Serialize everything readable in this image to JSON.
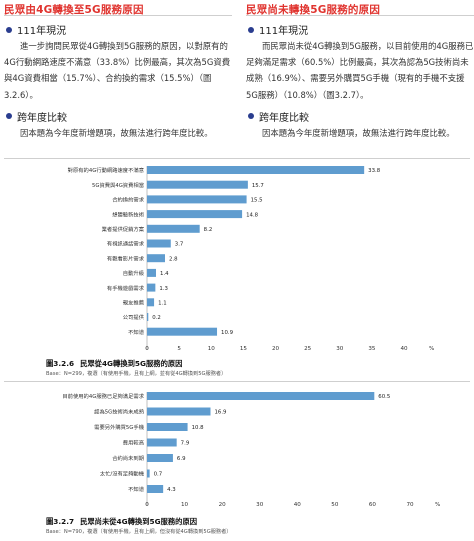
{
  "left": {
    "title": "民眾由4G轉換至5G服務原因",
    "sub1": "111年現況",
    "para1": "進一步詢問民眾從4G轉換到5G服務的原因，以對原有的4G行動網路速度不滿意（33.8%）比例最高，其次為5G資費與4G資費相當（15.7%）、合約換約需求（15.5%）（圖3.2.6）。",
    "sub2": "跨年度比較",
    "para2": "因本題為今年度新增題項，故無法進行跨年度比較。"
  },
  "right": {
    "title": "民眾尚未轉換5G服務的原因",
    "sub1": "111年現況",
    "para1": "而民眾尚未從4G轉換到5G服務，以目前使用的4G服務已足夠滿足需求（60.5%）比例最高，其次為認為5G技術尚未成熟（16.9%）、需要另外購買5G手機（現有的手機不支援5G服務）（10.8%）（圖3.2.7）。",
    "sub2": "跨年度比較",
    "para2": "因本題為今年度新增題項，故無法進行跨年度比較。"
  },
  "colors": {
    "title": "#e0342f",
    "bar": "#5f9ccf",
    "bullet": "#2a3d8f"
  },
  "chart_data": [
    {
      "type": "bar",
      "orientation": "horizontal",
      "title": "民眾從4G轉換到5G服務的原因",
      "caption_number": "圖3.2.6",
      "note": "Base：N=299，複選（有使用手機，且有上網，並有從4G轉換到5G服務者）",
      "categories": [
        "對原有的4G行動網路速度不滿意",
        "5G資費與4G資費相當",
        "合約換約需求",
        "想體驗新技術",
        "業者提供促銷方案",
        "有視訊通話需求",
        "有觀看影片需求",
        "自動升級",
        "有手機遊戲需求",
        "親友推薦",
        "公司提供",
        "不知道"
      ],
      "values": [
        33.8,
        15.7,
        15.5,
        14.8,
        8.2,
        3.7,
        2.8,
        1.4,
        1.3,
        1.1,
        0.2,
        10.9
      ],
      "value_labels": [
        "33.8",
        "15.7",
        "15.5",
        "14.8",
        "8.2",
        "3.7",
        "2.8",
        "1.4",
        "1.3",
        "1.1",
        "0.2",
        "10.9"
      ],
      "xticks": [
        "0",
        "5",
        "10",
        "15",
        "20",
        "25",
        "30",
        "35",
        "40"
      ],
      "xlim": [
        0,
        40
      ],
      "unit": "%"
    },
    {
      "type": "bar",
      "orientation": "horizontal",
      "title": "民眾尚未從4G轉換到5G服務的原因",
      "caption_number": "圖3.2.7",
      "note": "Base：N=790，複選（有使用手機，且有上網，但沒有從4G轉換到5G服務者）",
      "categories": [
        "目前使用的4G服務已足夠滿足需求",
        "認為5G技術尚未成熟",
        "需要另外購買5G手機",
        "費用較高",
        "合約尚未到期",
        "太忙/沒有足夠動機",
        "不知道"
      ],
      "values": [
        60.5,
        16.9,
        10.8,
        7.9,
        6.9,
        0.7,
        4.3
      ],
      "value_labels": [
        "60.5",
        "16.9",
        "10.8",
        "7.9",
        "6.9",
        "0.7",
        "4.3"
      ],
      "xticks": [
        "0",
        "10",
        "20",
        "30",
        "40",
        "50",
        "60",
        "70"
      ],
      "xlim": [
        0,
        70
      ],
      "unit": "%"
    }
  ]
}
